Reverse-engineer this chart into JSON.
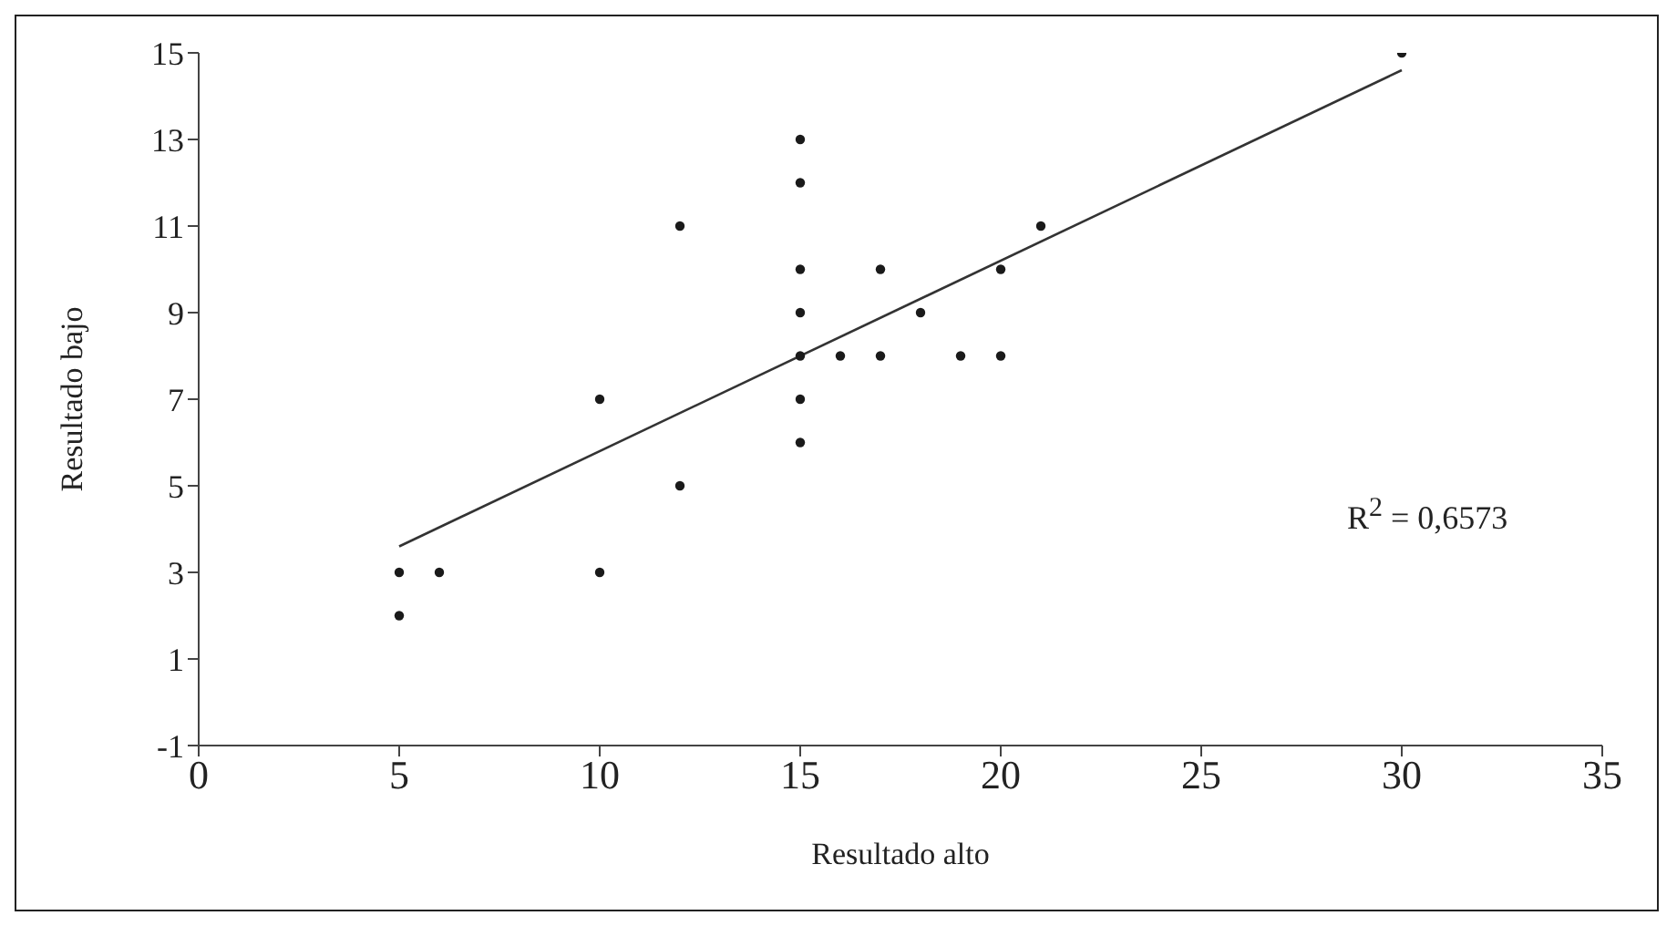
{
  "chart_data": {
    "type": "scatter",
    "xlabel": "Resultado alto",
    "ylabel": "Resultado bajo",
    "xlim": [
      0,
      35
    ],
    "xticks": [
      0,
      5,
      10,
      15,
      20,
      25,
      30,
      35
    ],
    "ylim": [
      -1,
      15
    ],
    "yticks": [
      -1,
      1,
      3,
      5,
      7,
      9,
      11,
      13,
      15
    ],
    "grid": false,
    "annotations": [
      "R$^{2}$ = 0,6573"
    ],
    "series": [
      {
        "marker": "circle",
        "color": "#1a1a1a",
        "x": [
          5,
          5,
          6,
          10,
          10,
          12,
          12,
          15,
          15,
          15,
          15,
          15,
          15,
          15,
          16,
          17,
          17,
          18,
          19,
          20,
          20,
          21,
          30
        ],
        "values": [
          3,
          2,
          3,
          7,
          3,
          11,
          5,
          13,
          12,
          10,
          9,
          8,
          7,
          6,
          8,
          10,
          8,
          9,
          8,
          10,
          8,
          11,
          15
        ]
      },
      {
        "type": "line",
        "marker": "none",
        "color": "#333333",
        "x": [
          5,
          30
        ],
        "values": [
          3.6,
          14.6
        ]
      }
    ]
  }
}
